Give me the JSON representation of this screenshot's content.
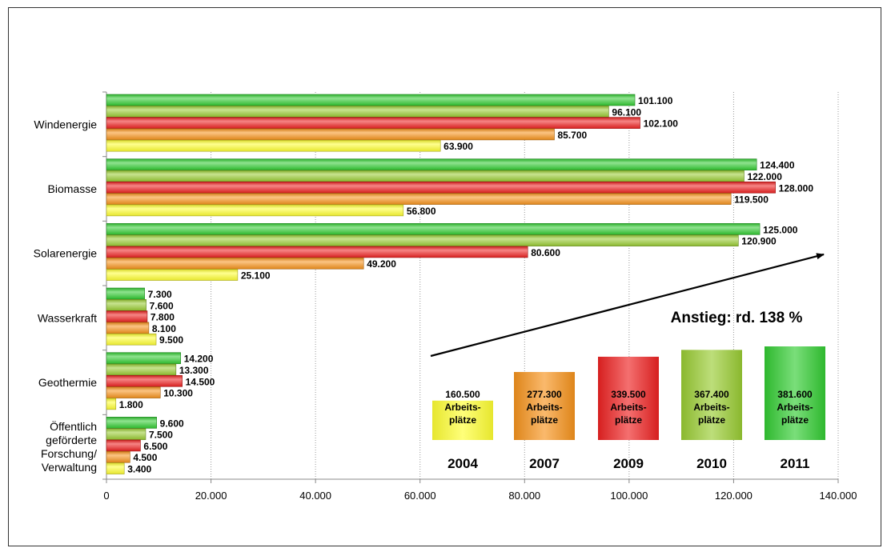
{
  "chart_data": {
    "type": "bar",
    "orientation": "horizontal",
    "categories": [
      "Windenergie",
      "Biomasse",
      "Solarenergie",
      "Wasserkraft",
      "Geothermie",
      "Öffentlich geförderte Forschung/ Verwaltung"
    ],
    "category_lines": [
      [
        "Windenergie"
      ],
      [
        "Biomasse"
      ],
      [
        "Solarenergie"
      ],
      [
        "Wasserkraft"
      ],
      [
        "Geothermie"
      ],
      [
        "Öffentlich",
        "geförderte",
        "Forschung/",
        "Verwaltung"
      ]
    ],
    "series": [
      {
        "name": "2011",
        "color": "#33cc33",
        "values": [
          101100,
          124400,
          125000,
          7300,
          14200,
          9600
        ],
        "labels": [
          "101.100",
          "124.400",
          "125.000",
          "7.300",
          "14.200",
          "9.600"
        ]
      },
      {
        "name": "2010",
        "color": "#99cc33",
        "values": [
          96100,
          122000,
          120900,
          7600,
          13300,
          7500
        ],
        "labels": [
          "96.100",
          "122.000",
          "120.900",
          "7.600",
          "13.300",
          "7.500"
        ]
      },
      {
        "name": "2009",
        "color": "#ee2222",
        "values": [
          102100,
          128000,
          80600,
          7800,
          14500,
          6500
        ],
        "labels": [
          "102.100",
          "128.000",
          "80.600",
          "7.800",
          "14.500",
          "6.500"
        ]
      },
      {
        "name": "2007",
        "color": "#f7941d",
        "values": [
          85700,
          119500,
          49200,
          8100,
          10300,
          4500
        ],
        "labels": [
          "85.700",
          "119.500",
          "49.200",
          "8.100",
          "10.300",
          "4.500"
        ]
      },
      {
        "name": "2004",
        "color": "#ffff33",
        "values": [
          63900,
          56800,
          25100,
          9500,
          1800,
          3400
        ],
        "labels": [
          "63.900",
          "56.800",
          "25.100",
          "9.500",
          "1.800",
          "3.400"
        ]
      }
    ],
    "xlim": [
      0,
      140000
    ],
    "xticks": [
      0,
      20000,
      40000,
      60000,
      80000,
      100000,
      120000,
      140000
    ],
    "xtick_labels": [
      "0",
      "20.000",
      "40.000",
      "60.000",
      "80.000",
      "100.000",
      "120.000",
      "140.000"
    ],
    "grid": "vertical dotted",
    "inset": {
      "headline": "Anstieg: rd. 138 %",
      "totals": [
        {
          "year": "2004",
          "value": 160500,
          "value_label": "160.500",
          "unit_line1": "Arbeits-",
          "unit_line2": "plätze",
          "color": "#ffff33"
        },
        {
          "year": "2007",
          "value": 277300,
          "value_label": "277.300",
          "unit_line1": "Arbeits-",
          "unit_line2": "plätze",
          "color": "#f7941d"
        },
        {
          "year": "2009",
          "value": 339500,
          "value_label": "339.500",
          "unit_line1": "Arbeits-",
          "unit_line2": "plätze",
          "color": "#ee2222"
        },
        {
          "year": "2010",
          "value": 367400,
          "value_label": "367.400",
          "unit_line1": "Arbeits-",
          "unit_line2": "plätze",
          "color": "#99cc33"
        },
        {
          "year": "2011",
          "value": 381600,
          "value_label": "381.600",
          "unit_line1": "Arbeits-",
          "unit_line2": "plätze",
          "color": "#33cc33"
        }
      ]
    }
  }
}
